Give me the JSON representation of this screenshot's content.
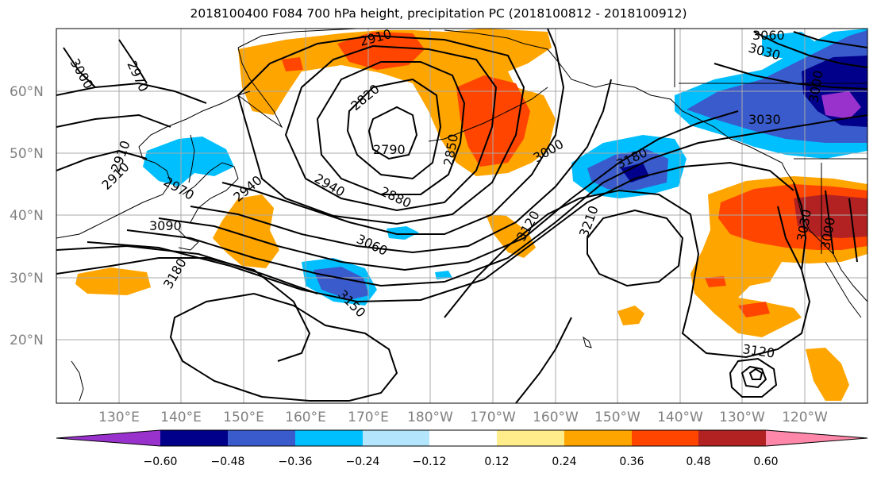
{
  "title": "2018100400 F084 700 hPa height, precipitation PC (2018100812 - 2018100912)",
  "lat_labels": [
    "60°N",
    "50°N",
    "40°N",
    "30°N",
    "20°N"
  ],
  "lon_labels": [
    "130°E",
    "140°E",
    "150°E",
    "160°E",
    "170°E",
    "180°W",
    "170°W",
    "160°W",
    "150°W",
    "140°W",
    "130°W",
    "120°W"
  ],
  "contour_labels": [
    "2910",
    "3000",
    "2970",
    "2820",
    "2790",
    "2850",
    "3000",
    "2880",
    "2940",
    "3060",
    "3120",
    "3180",
    "3210",
    "3150",
    "3090",
    "2910",
    "2910",
    "2970",
    "2940",
    "3180",
    "3060",
    "3030",
    "3030",
    "3000",
    "3030",
    "3000",
    "3120"
  ],
  "colorbar": {
    "colors": [
      "#9932cc",
      "#00008b",
      "#3a5bcc",
      "#00bfff",
      "#b3e5fc",
      "#ffffff",
      "#ffec8b",
      "#ffa500",
      "#ff4500",
      "#b22222",
      "#ff88aa"
    ],
    "tick_labels": [
      "−0.60",
      "−0.48",
      "−0.36",
      "−0.24",
      "−0.12",
      "0.12",
      "0.24",
      "0.36",
      "0.48",
      "0.60"
    ]
  },
  "colors": {
    "grid": "#a9a9a9",
    "coastline": "#000000",
    "contour": "#000000"
  }
}
